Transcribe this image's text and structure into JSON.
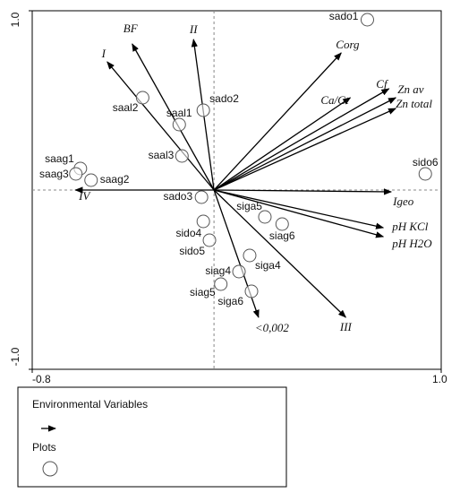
{
  "chart_data": {
    "type": "biplot",
    "xlim": [
      -0.8,
      1.0
    ],
    "ylim": [
      -1.0,
      1.0
    ],
    "xticks": [
      -0.8,
      {
        "value": 1.0,
        "label": "1.0"
      }
    ],
    "yticks": [
      {
        "value": 1.0,
        "label": "1.0"
      },
      {
        "value": -1.0,
        "label": "-1.0"
      }
    ],
    "series": [
      {
        "name": "Environmental Variables",
        "type": "arrow",
        "color": "#000000",
        "labels": [
          "I",
          "BF",
          "II",
          "Corg",
          "Ca/Ct",
          "Cf",
          "Zn av",
          "Zn total",
          "Igeo",
          "pH KCl",
          "pH H2O",
          "III",
          "<0,002",
          "IV"
        ],
        "x": [
          -0.47,
          -0.36,
          -0.09,
          0.56,
          0.6,
          0.77,
          0.8,
          0.8,
          0.78,
          0.745,
          0.745,
          0.58,
          0.196,
          -0.61
        ],
        "values": [
          0.715,
          0.815,
          0.84,
          0.765,
          0.515,
          0.565,
          0.515,
          0.455,
          -0.01,
          -0.21,
          -0.26,
          -0.71,
          -0.71,
          0.0
        ]
      },
      {
        "name": "Plots",
        "type": "point",
        "color": "#555555",
        "labels": [
          "sado1",
          "saal2",
          "sado2",
          "saal1",
          "saal3",
          "saag1",
          "saag3",
          "saag2",
          "sido6",
          "sado3",
          "siga5",
          "siag6",
          "sido4",
          "sido5",
          "siga4",
          "siag4",
          "siag5",
          "siga6"
        ],
        "x": [
          0.675,
          -0.314,
          -0.047,
          -0.153,
          -0.141,
          -0.588,
          -0.608,
          -0.541,
          0.93,
          -0.055,
          0.224,
          0.3,
          -0.047,
          -0.02,
          0.157,
          0.11,
          0.03,
          0.165
        ],
        "values": [
          0.95,
          0.515,
          0.445,
          0.365,
          0.19,
          0.12,
          0.09,
          0.055,
          0.09,
          -0.04,
          -0.15,
          -0.19,
          -0.175,
          -0.28,
          -0.365,
          -0.455,
          -0.525,
          -0.565
        ]
      }
    ]
  }
}
